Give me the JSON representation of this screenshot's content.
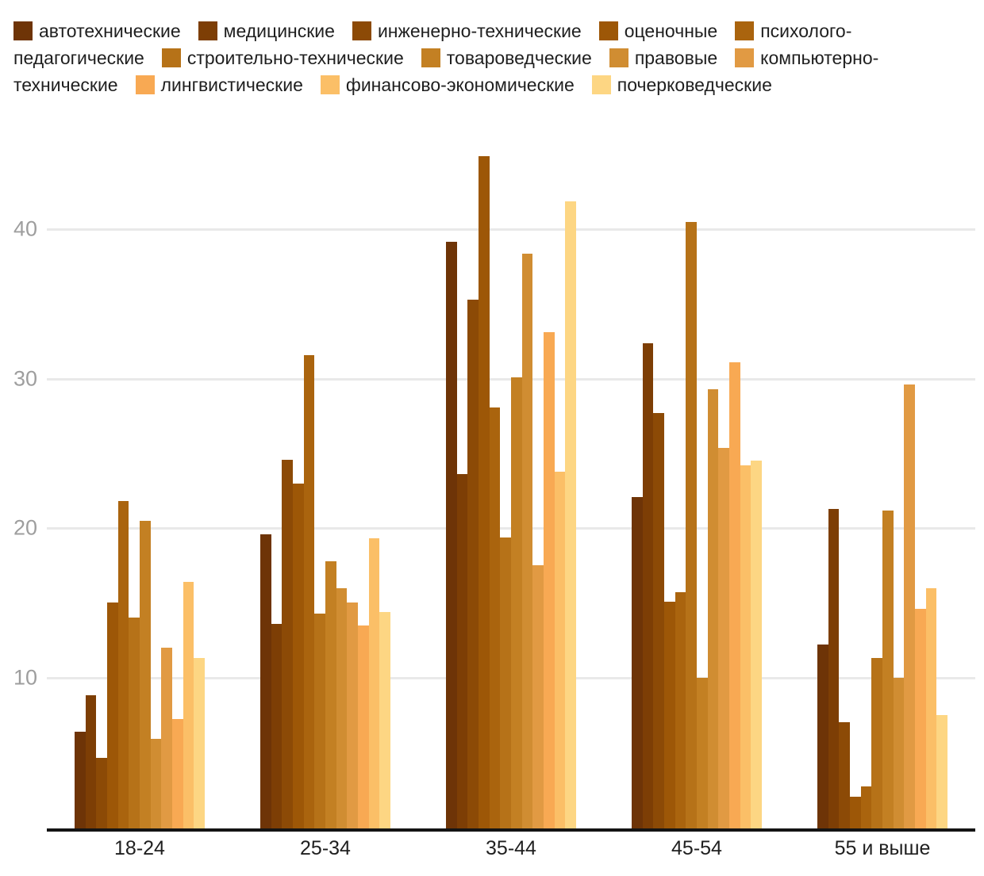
{
  "chart_data": {
    "type": "bar",
    "title": "",
    "xlabel": "",
    "ylabel": "",
    "categories": [
      "18-24",
      "25-34",
      "35-44",
      "45-54",
      "55 и выше"
    ],
    "series": [
      {
        "name": "автотехнические",
        "color": "#6e3407",
        "values": [
          6.5,
          19.7,
          39.3,
          22.2,
          12.3
        ]
      },
      {
        "name": "медицинские",
        "color": "#7d3e05",
        "values": [
          8.9,
          13.7,
          23.7,
          32.5,
          21.4
        ]
      },
      {
        "name": "инженерно-технические",
        "color": "#8c4a06",
        "values": [
          4.7,
          24.7,
          35.4,
          27.8,
          7.1
        ]
      },
      {
        "name": "оценочные",
        "color": "#9d5707",
        "values": [
          15.1,
          23.1,
          45.0,
          15.2,
          2.1
        ]
      },
      {
        "name": "психолого-педагогические",
        "color": "#aa640e",
        "values": [
          21.9,
          31.7,
          28.2,
          15.8,
          2.8
        ]
      },
      {
        "name": "строительно-технические",
        "color": "#b67218",
        "values": [
          14.1,
          14.4,
          19.5,
          40.6,
          11.4
        ]
      },
      {
        "name": "товароведческие",
        "color": "#c38023",
        "values": [
          20.6,
          17.9,
          30.2,
          10.1,
          21.3
        ]
      },
      {
        "name": "правовые",
        "color": "#d08d32",
        "values": [
          6.0,
          16.1,
          38.5,
          29.4,
          10.1
        ]
      },
      {
        "name": "компьютерно-технические",
        "color": "#e19a43",
        "values": [
          12.1,
          15.1,
          17.6,
          25.5,
          29.7
        ]
      },
      {
        "name": "лингвистические",
        "color": "#f8a953",
        "values": [
          7.3,
          13.6,
          33.2,
          31.2,
          14.7
        ]
      },
      {
        "name": "финансово-экономические",
        "color": "#fbbf67",
        "values": [
          16.5,
          19.4,
          23.9,
          24.3,
          16.1
        ]
      },
      {
        "name": "почерковедческие",
        "color": "#fdd683",
        "values": [
          11.4,
          14.5,
          42.0,
          24.6,
          7.6
        ]
      }
    ],
    "yticks": [
      10,
      20,
      30,
      40
    ],
    "ylim": [
      0,
      47.5
    ],
    "grid": true,
    "legend_position": "top",
    "colors": {
      "gridline": "#e9e9e9",
      "axis_line": "#141414",
      "y_tick_text": "#9e9e9e",
      "x_tick_text": "#1f1f1f",
      "legend_text": "#1f1f1f",
      "background": "#ffffff"
    }
  }
}
